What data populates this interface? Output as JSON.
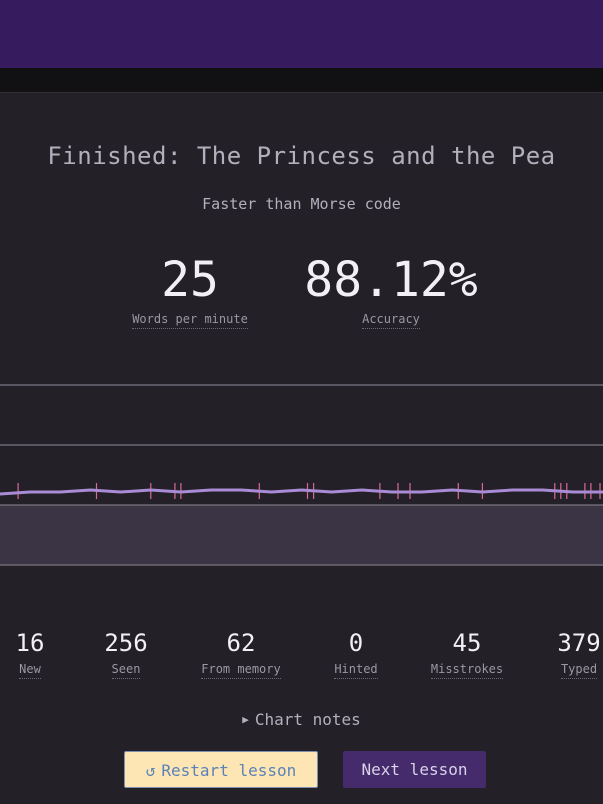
{
  "result": {
    "title": "Finished: The Princess and the Pea",
    "subtitle": "Faster than Morse code"
  },
  "speed": {
    "value": "25",
    "label": "Words per minute"
  },
  "accuracy": {
    "value": "88.12%",
    "label": "Accuracy"
  },
  "stats": [
    {
      "value": "16",
      "label": "New"
    },
    {
      "value": "256",
      "label": "Seen"
    },
    {
      "value": "62",
      "label": "From memory"
    },
    {
      "value": "0",
      "label": "Hinted"
    },
    {
      "value": "45",
      "label": "Misstrokes"
    },
    {
      "value": "379",
      "label": "Typed"
    }
  ],
  "chart_notes": {
    "label": "Chart notes",
    "icon": "triangle-right-icon",
    "expanded": false
  },
  "buttons": {
    "restart": {
      "label": "Restart lesson",
      "icon": "restart-icon"
    },
    "next": {
      "label": "Next lesson"
    }
  },
  "colors": {
    "header": "#361c5e",
    "background": "#232027",
    "speed_line": "#a98bd6",
    "misstroke_marker": "#d86a9a",
    "restart_button": "#fde6b4",
    "next_button": "#452b6c"
  },
  "chart_data": {
    "type": "line",
    "title": "",
    "xlabel": "",
    "ylabel": "",
    "grid": true,
    "series": [
      {
        "values": [
          24,
          25,
          25,
          26,
          25,
          26,
          25,
          26,
          26,
          25,
          26,
          25,
          26,
          25,
          25,
          26,
          25,
          26,
          26,
          25,
          25
        ]
      }
    ],
    "misstroke_positions": [
      0.03,
      0.16,
      0.25,
      0.29,
      0.3,
      0.43,
      0.51,
      0.52,
      0.63,
      0.66,
      0.68,
      0.76,
      0.8,
      0.92,
      0.93,
      0.94,
      0.97,
      0.98,
      0.995
    ]
  }
}
